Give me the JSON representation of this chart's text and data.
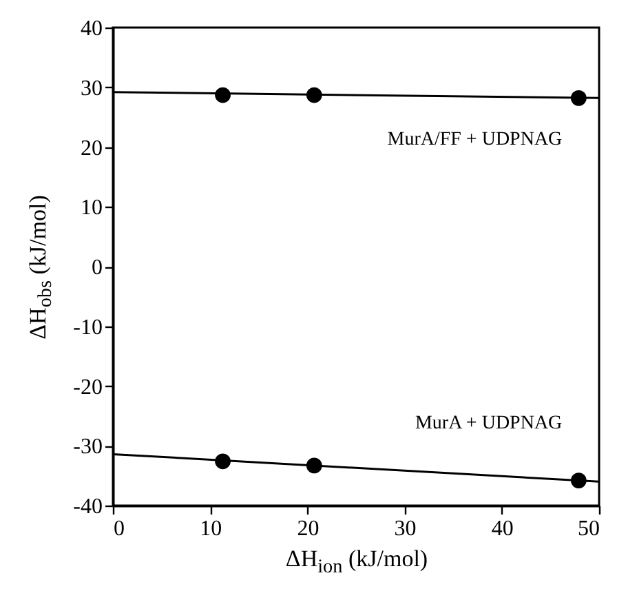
{
  "chart_data": {
    "type": "scatter",
    "xlabel": "ΔH$_{ion}$ (kJ/mol)",
    "ylabel": "ΔH$_{obs}$ (kJ/mol)",
    "xlim": [
      0,
      50
    ],
    "xticks": [
      0,
      10,
      20,
      30,
      40,
      50
    ],
    "ylim": [
      -40,
      40
    ],
    "yticks": [
      -40,
      -30,
      -20,
      -10,
      0,
      10,
      20,
      30,
      40
    ],
    "grid": false,
    "marker": "circle",
    "series": [
      {
        "name": "MurA/FF + UDPNAG",
        "color": "#000000",
        "x": [
          11.3,
          20.7,
          47.9
        ],
        "values": [
          28.7,
          28.7,
          28.2
        ]
      },
      {
        "type": "line",
        "color": "#000000",
        "x": [
          0,
          50
        ],
        "values": [
          29.2,
          28.2
        ],
        "marker": "none",
        "line_style": "solid"
      },
      {
        "name": "MurA + UDPNAG",
        "color": "#000000",
        "x": [
          11.3,
          20.7,
          47.9
        ],
        "values": [
          -32.6,
          -33.3,
          -35.8
        ]
      },
      {
        "type": "line",
        "color": "#000000",
        "x": [
          0,
          50
        ],
        "values": [
          -31.4,
          -36.0
        ],
        "marker": "none",
        "line_style": "solid"
      }
    ]
  }
}
